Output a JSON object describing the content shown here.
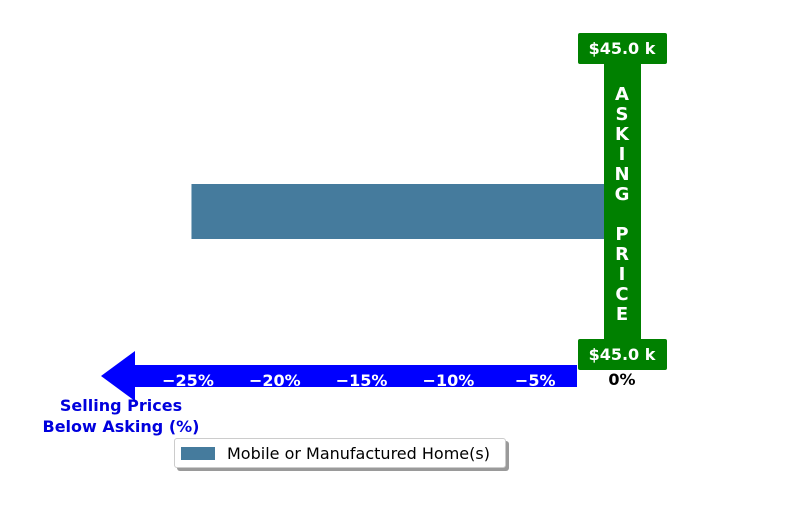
{
  "colors": {
    "bar": "#457b9d",
    "asking_price": "#008000",
    "arrow": "#0000ff",
    "axis_label": "#0000dd",
    "tick_text": "#ffffff",
    "zero_tick": "#000000"
  },
  "asking_price": {
    "top_label": "$45.0 k",
    "bottom_label": "$45.0 k",
    "vertical_text": "ASKING PRICE"
  },
  "axis": {
    "label_line1": "Selling Prices",
    "label_line2": "Below Asking (%)"
  },
  "legend": {
    "label": "Mobile or Manufactured Home(s)"
  },
  "chart_data": {
    "type": "bar",
    "orientation": "horizontal",
    "categories": [
      "Mobile or Manufactured Home(s)"
    ],
    "series": [
      {
        "name": "Mobile or Manufactured Home(s)",
        "values": [
          -24.8
        ]
      }
    ],
    "xticks": [
      -25,
      -20,
      -15,
      -10,
      -5,
      0
    ],
    "xtick_labels": [
      "−25%",
      "−20%",
      "−15%",
      "−10%",
      "−5%",
      "0%"
    ],
    "xlim": [
      -27.5,
      1
    ],
    "xlabel": "Selling Prices Below Asking (%)",
    "grid": false,
    "legend_position": "bottom-center"
  }
}
